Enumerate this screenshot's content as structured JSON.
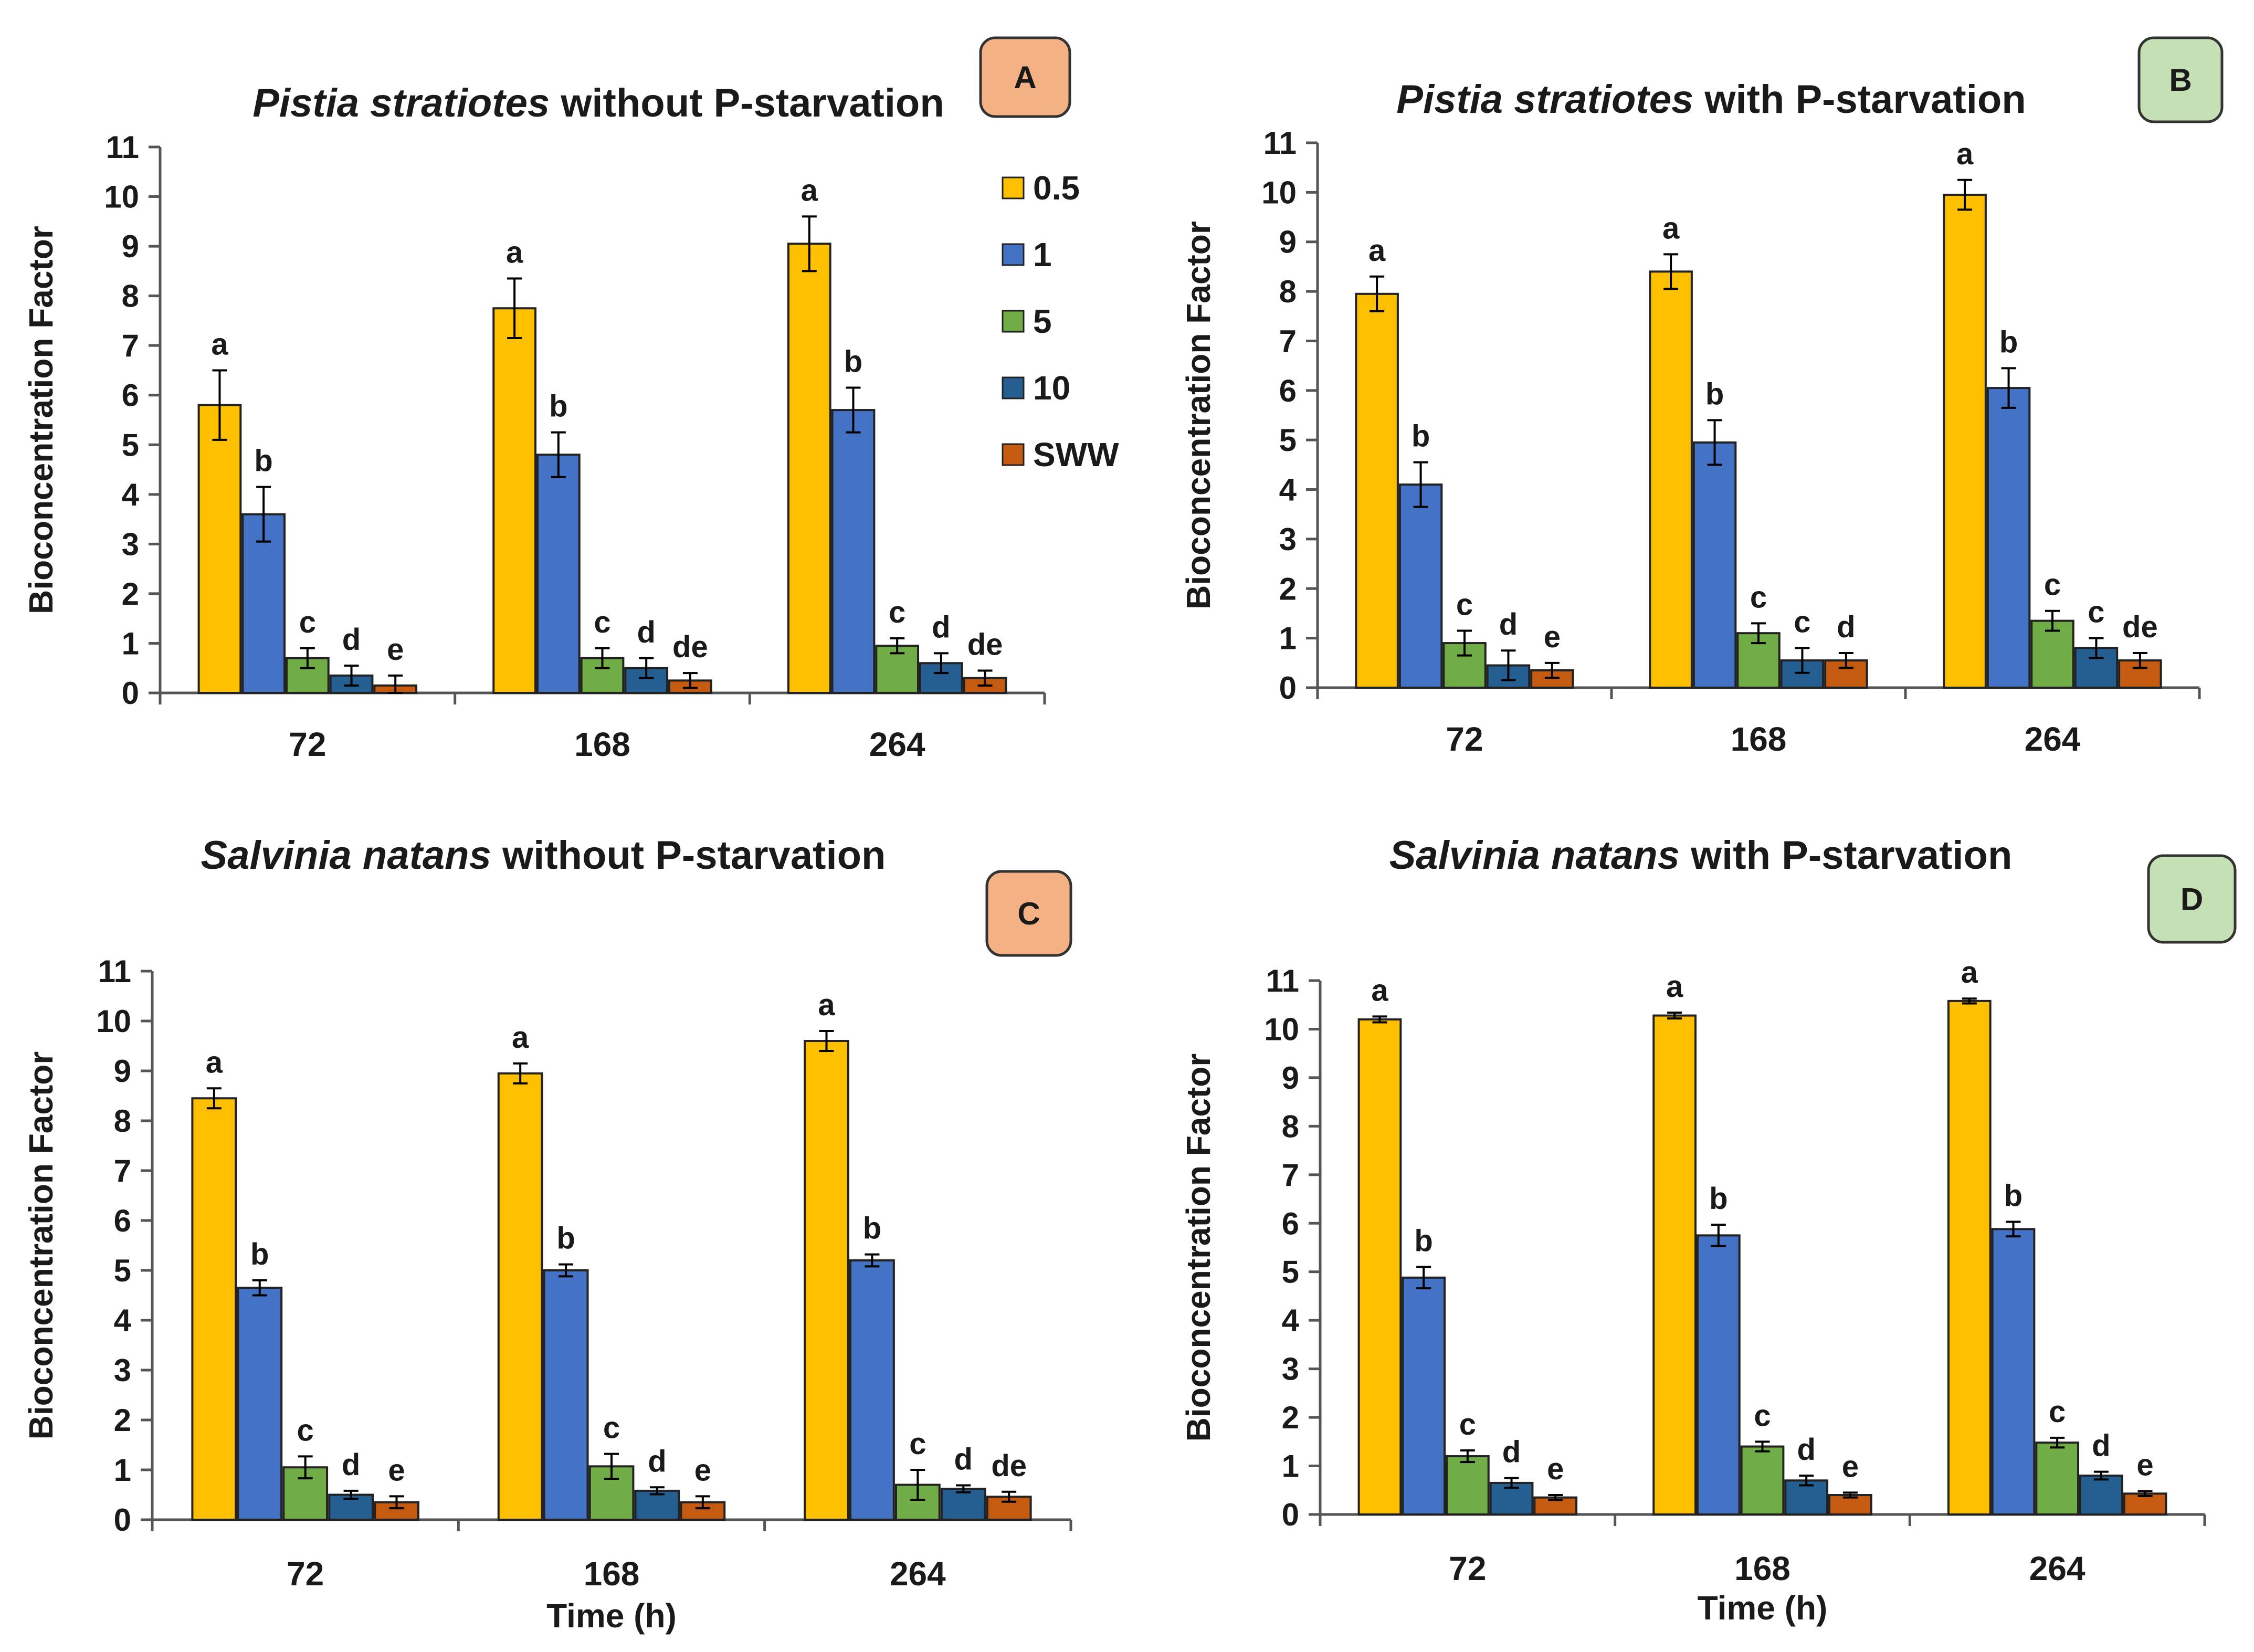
{
  "legend": {
    "entries": [
      {
        "name": "0.5",
        "color": "#FFC000"
      },
      {
        "name": "1",
        "color": "#4472C4"
      },
      {
        "name": "5",
        "color": "#70AD47"
      },
      {
        "name": "10",
        "color": "#255E91"
      },
      {
        "name": "SWW",
        "color": "#C55A11"
      }
    ]
  },
  "badge_colors": {
    "orange": "#F4B183",
    "green": "#C5E0B4"
  },
  "chart_data": [
    {
      "type": "bar",
      "panel_label": "A",
      "badge_color": "#F4B183",
      "title_italic": "Pistia stratiotes",
      "title_rest": " without P-starvation",
      "ylabel": "Bioconcentration Factor",
      "xlabel": "",
      "ylim": [
        0,
        11
      ],
      "yticks": [
        0,
        1,
        2,
        3,
        4,
        5,
        6,
        7,
        8,
        9,
        10,
        11
      ],
      "categories": [
        "72",
        "168",
        "264"
      ],
      "series": [
        {
          "name": "0.5",
          "values": [
            5.8,
            7.75,
            9.05
          ],
          "errors": [
            0.7,
            0.6,
            0.55
          ],
          "letters": [
            "a",
            "a",
            "a"
          ]
        },
        {
          "name": "1",
          "values": [
            3.6,
            4.8,
            5.7
          ],
          "errors": [
            0.55,
            0.45,
            0.45
          ],
          "letters": [
            "b",
            "b",
            "b"
          ]
        },
        {
          "name": "5",
          "values": [
            0.7,
            0.7,
            0.95
          ],
          "errors": [
            0.2,
            0.2,
            0.15
          ],
          "letters": [
            "c",
            "c",
            "c"
          ]
        },
        {
          "name": "10",
          "values": [
            0.35,
            0.5,
            0.6
          ],
          "errors": [
            0.2,
            0.2,
            0.2
          ],
          "letters": [
            "d",
            "d",
            "d"
          ]
        },
        {
          "name": "SWW",
          "values": [
            0.15,
            0.25,
            0.3
          ],
          "errors": [
            0.2,
            0.15,
            0.15
          ],
          "letters": [
            "e",
            "de",
            "de"
          ]
        }
      ],
      "show_legend": true
    },
    {
      "type": "bar",
      "panel_label": "B",
      "badge_color": "#C5E0B4",
      "title_italic": "Pistia stratiotes",
      "title_rest": " with P-starvation",
      "ylabel": "Bioconcentration Factor",
      "xlabel": "",
      "ylim": [
        0,
        11
      ],
      "yticks": [
        0,
        1,
        2,
        3,
        4,
        5,
        6,
        7,
        8,
        9,
        10,
        11
      ],
      "categories": [
        "72",
        "168",
        "264"
      ],
      "series": [
        {
          "name": "0.5",
          "values": [
            7.95,
            8.4,
            9.95
          ],
          "errors": [
            0.35,
            0.35,
            0.3
          ],
          "letters": [
            "a",
            "a",
            "a"
          ]
        },
        {
          "name": "1",
          "values": [
            4.1,
            4.95,
            6.05
          ],
          "errors": [
            0.45,
            0.45,
            0.4
          ],
          "letters": [
            "b",
            "b",
            "b"
          ]
        },
        {
          "name": "5",
          "values": [
            0.9,
            1.1,
            1.35
          ],
          "errors": [
            0.25,
            0.2,
            0.2
          ],
          "letters": [
            "c",
            "c",
            "c"
          ]
        },
        {
          "name": "10",
          "values": [
            0.45,
            0.55,
            0.8
          ],
          "errors": [
            0.3,
            0.25,
            0.2
          ],
          "letters": [
            "d",
            "c",
            "c"
          ]
        },
        {
          "name": "SWW",
          "values": [
            0.35,
            0.55,
            0.55
          ],
          "errors": [
            0.15,
            0.15,
            0.15
          ],
          "letters": [
            "e",
            "d",
            "de"
          ]
        }
      ],
      "show_legend": false
    },
    {
      "type": "bar",
      "panel_label": "C",
      "badge_color": "#F4B183",
      "title_italic": "Salvinia natans",
      "title_rest": " without P-starvation",
      "ylabel": "Bioconcentration Factor",
      "xlabel": "Time (h)",
      "ylim": [
        0,
        11
      ],
      "yticks": [
        0,
        1,
        2,
        3,
        4,
        5,
        6,
        7,
        8,
        9,
        10,
        11
      ],
      "categories": [
        "72",
        "168",
        "264"
      ],
      "series": [
        {
          "name": "0.5",
          "values": [
            8.45,
            8.95,
            9.6
          ],
          "errors": [
            0.2,
            0.2,
            0.2
          ],
          "letters": [
            "a",
            "a",
            "a"
          ]
        },
        {
          "name": "1",
          "values": [
            4.65,
            5.0,
            5.2
          ],
          "errors": [
            0.15,
            0.12,
            0.12
          ],
          "letters": [
            "b",
            "b",
            "b"
          ]
        },
        {
          "name": "5",
          "values": [
            1.05,
            1.07,
            0.7
          ],
          "errors": [
            0.22,
            0.25,
            0.3
          ],
          "letters": [
            "c",
            "c",
            "c"
          ]
        },
        {
          "name": "10",
          "values": [
            0.5,
            0.58,
            0.62
          ],
          "errors": [
            0.08,
            0.07,
            0.07
          ],
          "letters": [
            "d",
            "d",
            "d"
          ]
        },
        {
          "name": "SWW",
          "values": [
            0.35,
            0.35,
            0.46
          ],
          "errors": [
            0.12,
            0.12,
            0.1
          ],
          "letters": [
            "e",
            "e",
            "de"
          ]
        }
      ],
      "show_legend": false
    },
    {
      "type": "bar",
      "panel_label": "D",
      "badge_color": "#C5E0B4",
      "title_italic": "Salvinia natans",
      "title_rest": " with P-starvation",
      "ylabel": "Bioconcentration Factor",
      "xlabel": "Time (h)",
      "ylim": [
        0,
        11
      ],
      "yticks": [
        0,
        1,
        2,
        3,
        4,
        5,
        6,
        7,
        8,
        9,
        10,
        11
      ],
      "categories": [
        "72",
        "168",
        "264"
      ],
      "series": [
        {
          "name": "0.5",
          "values": [
            10.2,
            10.28,
            10.58
          ],
          "errors": [
            0.06,
            0.06,
            0.05
          ],
          "letters": [
            "a",
            "a",
            "a"
          ]
        },
        {
          "name": "1",
          "values": [
            4.88,
            5.75,
            5.88
          ],
          "errors": [
            0.22,
            0.22,
            0.15
          ],
          "letters": [
            "b",
            "b",
            "b"
          ]
        },
        {
          "name": "5",
          "values": [
            1.2,
            1.4,
            1.48
          ],
          "errors": [
            0.12,
            0.1,
            0.1
          ],
          "letters": [
            "c",
            "c",
            "c"
          ]
        },
        {
          "name": "10",
          "values": [
            0.65,
            0.7,
            0.8
          ],
          "errors": [
            0.1,
            0.1,
            0.08
          ],
          "letters": [
            "d",
            "d",
            "d"
          ]
        },
        {
          "name": "SWW",
          "values": [
            0.35,
            0.4,
            0.43
          ],
          "errors": [
            0.05,
            0.05,
            0.05
          ],
          "letters": [
            "e",
            "e",
            "e"
          ]
        }
      ],
      "show_legend": false
    }
  ]
}
